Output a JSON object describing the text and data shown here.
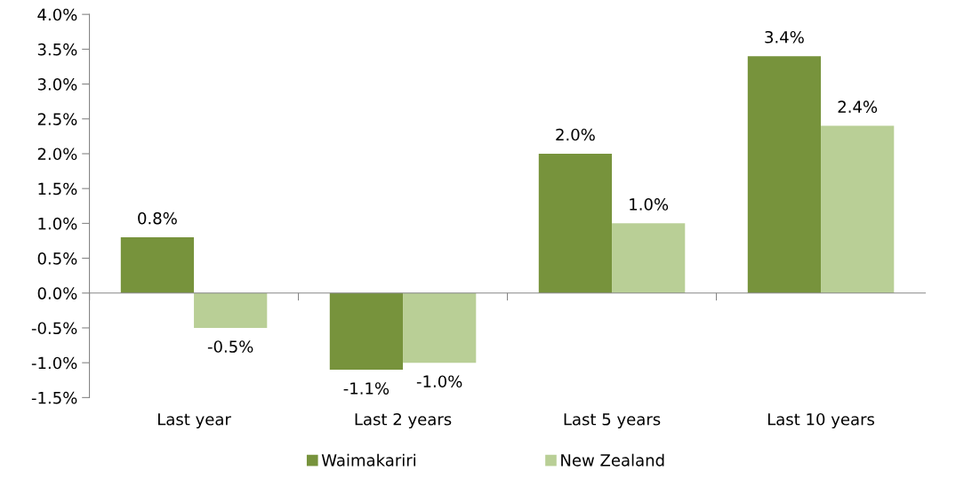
{
  "chart_data": {
    "type": "bar",
    "categories": [
      "Last year",
      "Last 2 years",
      "Last 5 years",
      "Last 10 years"
    ],
    "series": [
      {
        "name": "Waimakariri",
        "color": "#77933c",
        "values": [
          0.8,
          -1.1,
          2.0,
          3.4
        ],
        "value_labels": [
          "0.8%",
          "-1.1%",
          "2.0%",
          "3.4%"
        ]
      },
      {
        "name": "New Zealand",
        "color": "#b9cf96",
        "values": [
          -0.5,
          -1.0,
          1.0,
          2.4
        ],
        "value_labels": [
          "-0.5%",
          "-1.0%",
          "1.0%",
          "2.4%"
        ]
      }
    ],
    "ylim": [
      -1.5,
      4.0
    ],
    "yticks": [
      {
        "value": -1.5,
        "label": "-1.5%"
      },
      {
        "value": -1.0,
        "label": "-1.0%"
      },
      {
        "value": -0.5,
        "label": "-0.5%"
      },
      {
        "value": 0,
        "label": "0.0%"
      },
      {
        "value": 0.5,
        "label": "0.5%"
      },
      {
        "value": 1.0,
        "label": "1.0%"
      },
      {
        "value": 1.5,
        "label": "1.5%"
      },
      {
        "value": 2.0,
        "label": "2.0%"
      },
      {
        "value": 2.5,
        "label": "2.5%"
      },
      {
        "value": 3.0,
        "label": "3.0%"
      },
      {
        "value": 3.5,
        "label": "3.5%"
      },
      {
        "value": 4.0,
        "label": "4.0%"
      }
    ],
    "legend": "bottom"
  }
}
